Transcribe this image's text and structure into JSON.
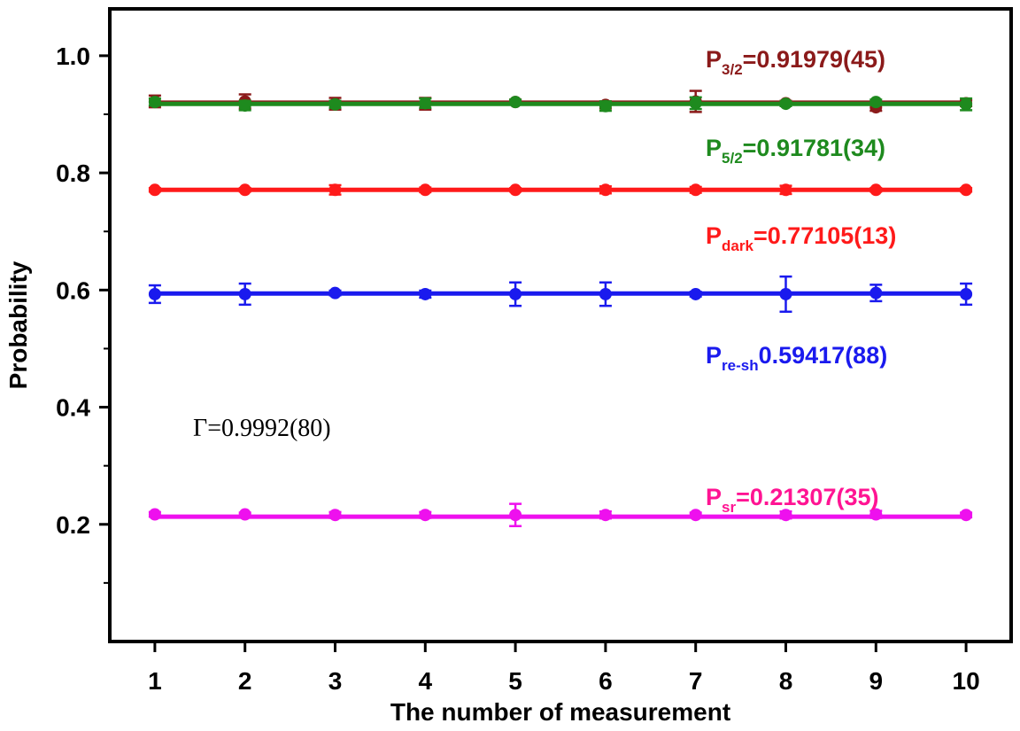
{
  "chart_data": {
    "type": "scatter",
    "xlabel": "The number of measurement",
    "ylabel": "Probability",
    "xlim": [
      0.5,
      10.5
    ],
    "ylim": [
      0.0,
      1.08
    ],
    "x_ticks": [
      1,
      2,
      3,
      4,
      5,
      6,
      7,
      8,
      9,
      10
    ],
    "y_ticks": [
      0.2,
      0.4,
      0.6,
      0.8,
      1.0
    ],
    "y_tick_labels": [
      "0.2",
      "0.4",
      "0.6",
      "0.8",
      "1.0"
    ],
    "grid": false,
    "x": [
      1,
      2,
      3,
      4,
      5,
      6,
      7,
      8,
      9,
      10
    ],
    "series": [
      {
        "name": "P3/2",
        "color": "#8b1a1a",
        "values": [
          0.922,
          0.922,
          0.918,
          0.918,
          0.921,
          0.916,
          0.922,
          0.919,
          0.912,
          0.919
        ],
        "errors": [
          0.01,
          0.012,
          0.01,
          0.01,
          0.004,
          0.006,
          0.018,
          0.004,
          0.006,
          0.005
        ],
        "fit": 0.91979
      },
      {
        "name": "P5/2",
        "color": "#1e8a1e",
        "values": [
          0.921,
          0.915,
          0.917,
          0.919,
          0.921,
          0.914,
          0.919,
          0.918,
          0.921,
          0.917
        ],
        "errors": [
          0.006,
          0.008,
          0.006,
          0.008,
          0.004,
          0.008,
          0.01,
          0.004,
          0.004,
          0.01
        ],
        "fit": 0.91781
      },
      {
        "name": "Pdark",
        "color": "#ff1a1a",
        "values": [
          0.771,
          0.771,
          0.771,
          0.771,
          0.771,
          0.771,
          0.771,
          0.771,
          0.771,
          0.771
        ],
        "errors": [
          0.003,
          0.003,
          0.008,
          0.004,
          0.003,
          0.006,
          0.005,
          0.007,
          0.003,
          0.003
        ],
        "fit": 0.77105
      },
      {
        "name": "Pre-sh",
        "color": "#1a1aee",
        "values": [
          0.593,
          0.593,
          0.595,
          0.593,
          0.593,
          0.593,
          0.593,
          0.593,
          0.595,
          0.593
        ],
        "errors": [
          0.015,
          0.018,
          0.004,
          0.006,
          0.02,
          0.02,
          0.004,
          0.03,
          0.014,
          0.018
        ],
        "fit": 0.59417
      },
      {
        "name": "Psr",
        "color": "#ee10ee",
        "values": [
          0.217,
          0.217,
          0.216,
          0.216,
          0.216,
          0.216,
          0.216,
          0.216,
          0.217,
          0.216
        ],
        "errors": [
          0.004,
          0.003,
          0.005,
          0.005,
          0.019,
          0.006,
          0.004,
          0.006,
          0.006,
          0.004
        ],
        "fit": 0.21307
      }
    ],
    "annotations": [
      {
        "main": "P",
        "sub": "3/2",
        "value": "=0.91979(45)",
        "color": "#8b1a1a"
      },
      {
        "main": "P",
        "sub": "5/2",
        "value": "=0.91781(34)",
        "color": "#1e8a1e"
      },
      {
        "main": "P",
        "sub": "dark",
        "value": "=0.77105(13)",
        "color": "#ff1a1a"
      },
      {
        "main": "P",
        "sub": "re-sh",
        "value": "0.59417(88)",
        "color": "#1a1aee"
      },
      {
        "main": "P",
        "sub": "sr",
        "value": "=0.21307(35)",
        "color": "#ff1493"
      }
    ],
    "gamma_text": "Γ=0.9992(80)"
  }
}
